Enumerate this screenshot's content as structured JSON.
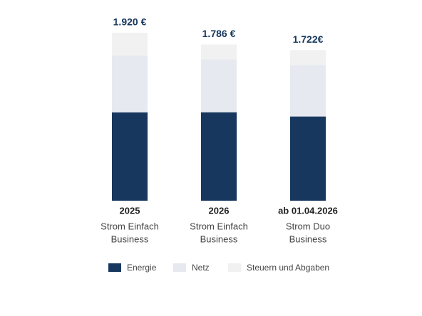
{
  "chart_data": {
    "type": "stacked_bar",
    "categories": [
      "2025",
      "2026",
      "ab 01.04.2026"
    ],
    "category_descriptions": [
      [
        "Strom Einfach",
        "Business"
      ],
      [
        "Strom Einfach",
        "Business"
      ],
      [
        "Strom Duo",
        "Business"
      ]
    ],
    "series": [
      {
        "name": "Energie",
        "color": "#17375e",
        "values": [
          1009,
          1011,
          963
        ]
      },
      {
        "name": "Netz",
        "color": "#e6e9ef",
        "values": [
          651,
          604,
          588
        ]
      },
      {
        "name": "Steuern und Abgaben",
        "color": "#f1f1f1",
        "values": [
          260,
          171,
          171
        ]
      }
    ],
    "totals": {
      "values": [
        1920,
        1786,
        1722
      ],
      "value_labels": [
        "1.920 €",
        "1.786 €",
        "1.722€"
      ]
    },
    "legend": "bottom"
  }
}
